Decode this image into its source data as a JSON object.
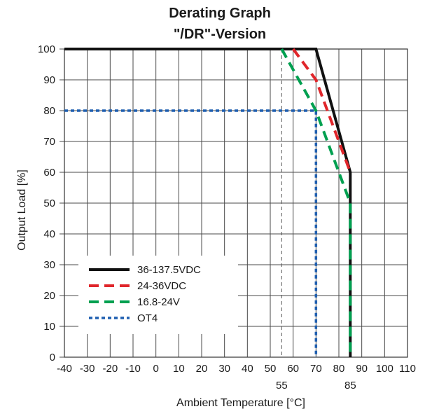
{
  "chart_data": {
    "type": "line",
    "title": "Derating Graph",
    "subtitle": "\"/DR\"-Version",
    "xlabel": "Ambient Temperature [°C]",
    "ylabel": "Output Load [%]",
    "xlim": [
      -40,
      110
    ],
    "ylim": [
      0,
      100
    ],
    "grid": true,
    "legend_position": "bottom-left",
    "x_ticks": [
      {
        "value": -40,
        "label": "-40"
      },
      {
        "value": -30,
        "label": "-30"
      },
      {
        "value": -20,
        "label": "-20"
      },
      {
        "value": -10,
        "label": "-10"
      },
      {
        "value": 0,
        "label": "0"
      },
      {
        "value": 10,
        "label": "10"
      },
      {
        "value": 20,
        "label": "20"
      },
      {
        "value": 30,
        "label": "30"
      },
      {
        "value": 40,
        "label": "40"
      },
      {
        "value": 50,
        "label": "50"
      },
      {
        "value": 60,
        "label": "60"
      },
      {
        "value": 70,
        "label": "70"
      },
      {
        "value": 80,
        "label": "80"
      },
      {
        "value": 90,
        "label": "90"
      },
      {
        "value": 100,
        "label": "100"
      },
      {
        "value": 110,
        "label": "110"
      }
    ],
    "x_ticks_extra": [
      {
        "value": 55,
        "label": "55"
      },
      {
        "value": 85,
        "label": "85"
      }
    ],
    "y_ticks": [
      0,
      10,
      20,
      30,
      40,
      50,
      60,
      70,
      80,
      90,
      100
    ],
    "series": [
      {
        "name": "36-137.5VDC",
        "color": "#111111",
        "style": "solid",
        "points": [
          [
            -40,
            100
          ],
          [
            70,
            100
          ],
          [
            85,
            60
          ],
          [
            85,
            0
          ]
        ]
      },
      {
        "name": "24-36VDC",
        "color": "#e0262b",
        "style": "dashed",
        "points": [
          [
            60,
            100
          ],
          [
            70,
            90
          ],
          [
            85,
            60
          ]
        ]
      },
      {
        "name": "16.8-24V",
        "color": "#00a050",
        "style": "dashed",
        "points": [
          [
            55,
            100
          ],
          [
            70,
            80
          ],
          [
            85,
            50
          ],
          [
            85,
            0
          ]
        ]
      },
      {
        "name": "OT4",
        "color": "#1f5fb0",
        "style": "dotted",
        "points": [
          [
            -40,
            80
          ],
          [
            70,
            80
          ],
          [
            70,
            0
          ]
        ]
      }
    ],
    "reference_lines": [
      {
        "color": "#555555",
        "style": "thin-dashed",
        "points": [
          [
            55,
            100
          ],
          [
            55,
            0
          ]
        ]
      }
    ]
  }
}
